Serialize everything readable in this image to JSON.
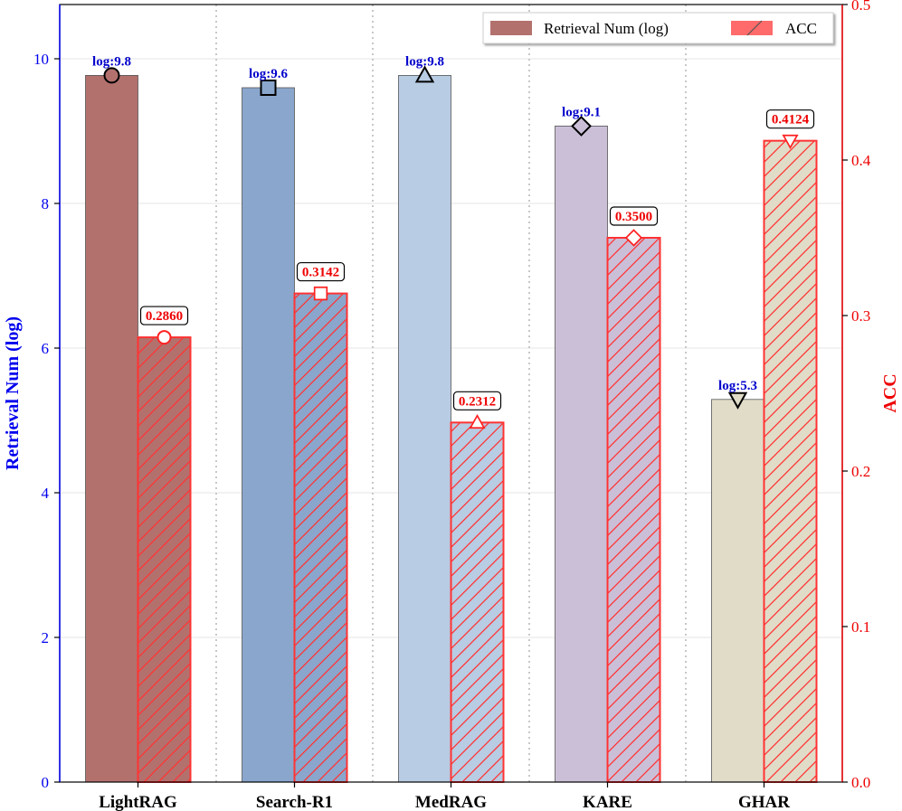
{
  "chart_data": {
    "type": "bar",
    "categories": [
      "LightRAG",
      "Search-R1",
      "MedRAG",
      "KARE",
      "GHAR"
    ],
    "series": [
      {
        "name": "Retrieval Num (log)",
        "axis": "left",
        "values": [
          9.77,
          9.6,
          9.77,
          9.07,
          5.29
        ],
        "labels": [
          "log:9.8",
          "log:9.6",
          "log:9.8",
          "log:9.1",
          "log:5.3"
        ],
        "colors": [
          "#b3716e",
          "#8aa6cc",
          "#b8cce3",
          "#cbbfd8",
          "#e0dcc8"
        ],
        "markers": [
          "circle",
          "square",
          "triangle-up",
          "diamond",
          "triangle-down"
        ]
      },
      {
        "name": "ACC",
        "axis": "right",
        "values": [
          0.286,
          0.3142,
          0.2312,
          0.35,
          0.4124
        ],
        "labels": [
          "0.2860",
          "0.3142",
          "0.2312",
          "0.3500",
          "0.4124"
        ],
        "hatch": true,
        "edge_color": "#ff3333"
      }
    ],
    "ylabel_left": "Retrieval Num (log)",
    "ylabel_right": "ACC",
    "ylim_left": [
      0,
      10.75
    ],
    "ylim_right": [
      0,
      0.5
    ],
    "yticks_left": [
      0,
      2,
      4,
      6,
      8,
      10
    ],
    "yticks_right": [
      0.0,
      0.1,
      0.2,
      0.3,
      0.4,
      0.5
    ],
    "yticklabels_left": [
      "0",
      "2",
      "4",
      "6",
      "8",
      "10"
    ],
    "yticklabels_right": [
      "0.0",
      "0.1",
      "0.2",
      "0.3",
      "0.4",
      "0.5"
    ],
    "grid": true,
    "legend": {
      "placement": "top-right",
      "entries": [
        "Retrieval Num (log)",
        "ACC"
      ]
    }
  }
}
